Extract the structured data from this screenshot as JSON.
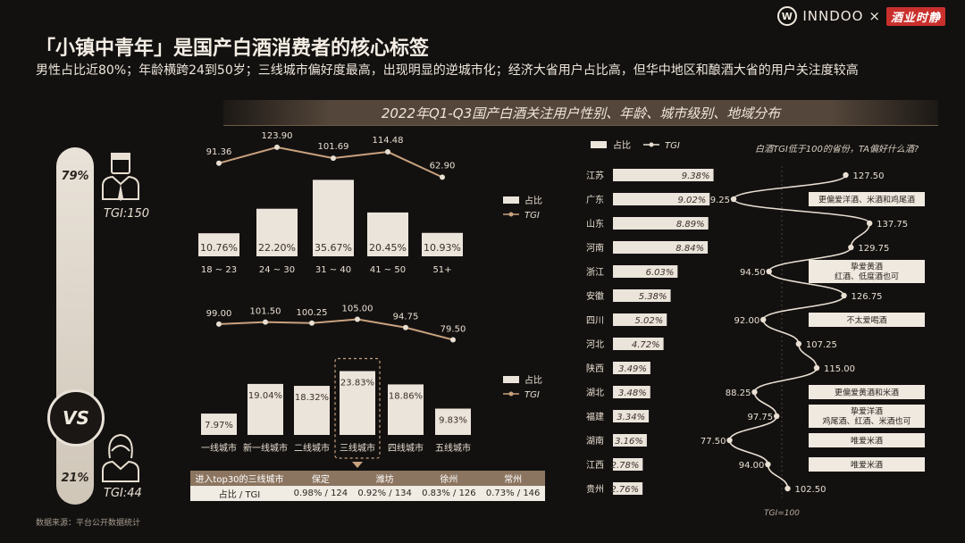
{
  "brand": {
    "logo": "W",
    "name": "INNDOO",
    "cross": "×",
    "partner": "酒业时静"
  },
  "header": {
    "title": "「小镇中青年」是国产白酒消费者的核心标签",
    "subtitle": "男性占比近80%；年龄横跨24到50岁；三线城市偏好度最高，出现明显的逆城市化；经济大省用户占比高，但华中地区和酿酒大省的用户关注度较高"
  },
  "banner": "2022年Q1-Q3国产白酒关注用户性别、年龄、城市级别、地域分布",
  "gender": {
    "male_pct": "79%",
    "male_tgi": "TGI:150",
    "female_pct": "21%",
    "female_tgi": "TGI:44",
    "vs": "VS",
    "male_icon": "male-user-icon",
    "female_icon": "female-user-icon"
  },
  "colors": {
    "bar": "#ebe4db",
    "accent": "#c9a27e",
    "bg": "#131110",
    "table_header": "#8c7560"
  },
  "legend": {
    "share": "占比",
    "tgi": "TGI"
  },
  "chart_data": [
    {
      "type": "bar",
      "title": "",
      "categories": [
        "18 ~ 23",
        "24 ~ 30",
        "31 ~ 40",
        "41 ~ 50",
        "51+"
      ],
      "series": [
        {
          "name": "占比",
          "values": [
            10.76,
            22.2,
            35.67,
            20.45,
            10.93
          ],
          "labels": [
            "10.76%",
            "22.20%",
            "35.67%",
            "20.45%",
            "10.93%"
          ]
        },
        {
          "name": "TGI",
          "values": [
            91.36,
            123.9,
            101.69,
            114.48,
            62.9
          ],
          "labels": [
            "91.36",
            "123.90",
            "101.69",
            "114.48",
            "62.90"
          ]
        }
      ]
    },
    {
      "type": "bar",
      "title": "",
      "categories": [
        "一线城市",
        "新一线城市",
        "二线城市",
        "三线城市",
        "四线城市",
        "五线城市"
      ],
      "highlight": "三线城市",
      "series": [
        {
          "name": "占比",
          "values": [
            7.97,
            19.04,
            18.32,
            23.83,
            18.86,
            9.83
          ],
          "labels": [
            "7.97%",
            "19.04%",
            "18.32%",
            "23.83%",
            "18.86%",
            "9.83%"
          ]
        },
        {
          "name": "TGI",
          "values": [
            99.0,
            101.5,
            100.25,
            105.0,
            94.75,
            79.5
          ],
          "labels": [
            "99.00",
            "101.50",
            "100.25",
            "105.00",
            "94.75",
            "79.50"
          ]
        }
      ]
    },
    {
      "type": "bar",
      "title": "",
      "note": "白酒TGI低于100的省份，TA偏好什么酒?",
      "tgi_baseline": "TGI=100",
      "categories": [
        "江苏",
        "广东",
        "山东",
        "河南",
        "浙江",
        "安徽",
        "四川",
        "河北",
        "陕西",
        "湖北",
        "福建",
        "湖南",
        "江西",
        "贵州"
      ],
      "series": [
        {
          "name": "占比",
          "values": [
            9.38,
            9.02,
            8.89,
            8.84,
            6.03,
            5.38,
            5.02,
            4.72,
            3.49,
            3.48,
            3.34,
            3.16,
            2.78,
            2.76
          ],
          "labels": [
            "9.38%",
            "9.02%",
            "8.89%",
            "8.84%",
            "6.03%",
            "5.38%",
            "5.02%",
            "4.72%",
            "3.49%",
            "3.48%",
            "3.34%",
            "3.16%",
            "2.78%",
            "2.76%"
          ]
        },
        {
          "name": "TGI",
          "values": [
            127.5,
            79.25,
            137.75,
            129.75,
            94.5,
            126.75,
            92.0,
            107.25,
            115.0,
            88.25,
            97.75,
            77.5,
            94.0,
            102.5
          ],
          "labels": [
            "127.50",
            "79.25",
            "137.75",
            "129.75",
            "94.50",
            "126.75",
            "92.00",
            "107.25",
            "115.00",
            "88.25",
            "97.75",
            "77.50",
            "94.00",
            "102.50"
          ]
        }
      ],
      "callouts": [
        {
          "index": 1,
          "text": [
            "更偏爱洋酒、米酒和鸡尾酒"
          ]
        },
        {
          "index": 4,
          "text": [
            "挚爱黄酒",
            "红酒、低度酒也可"
          ]
        },
        {
          "index": 6,
          "text": [
            "不太爱喝酒"
          ]
        },
        {
          "index": 9,
          "text": [
            "更偏爱黄酒和米酒"
          ]
        },
        {
          "index": 10,
          "text": [
            "挚爱洋酒",
            "鸡尾酒、红酒、米酒也可"
          ]
        },
        {
          "index": 11,
          "text": [
            "唯爱米酒"
          ]
        },
        {
          "index": 12,
          "text": [
            "唯爱米酒"
          ]
        }
      ]
    }
  ],
  "city_table": {
    "header": [
      "进入top30的三线城市",
      "保定",
      "潍坊",
      "徐州",
      "常州"
    ],
    "row": [
      "占比 / TGI",
      "0.98% / 124",
      "0.92% / 134",
      "0.83% / 126",
      "0.73% / 146"
    ]
  },
  "source": "数据来源：平台公开数据统计"
}
